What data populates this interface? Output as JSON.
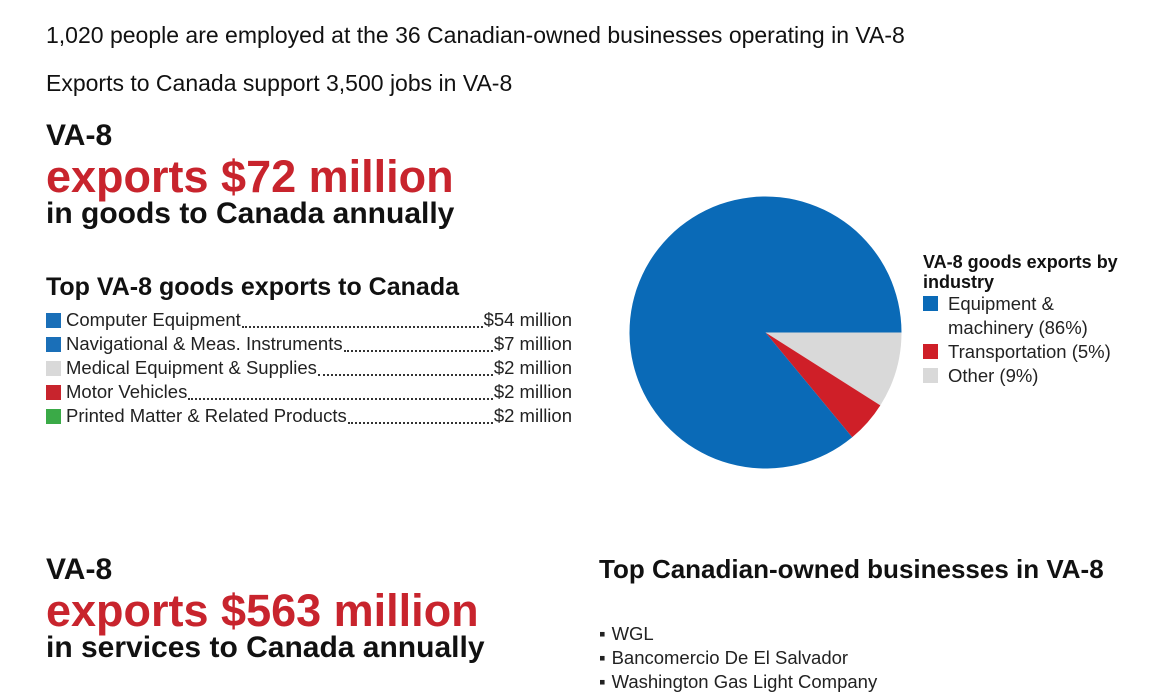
{
  "intro": {
    "line1": "1,020 people are employed at the 36 Canadian-owned businesses operating in VA-8",
    "line2": "Exports to Canada support 3,500 jobs in VA-8"
  },
  "goods": {
    "region": "VA-8",
    "amount": "exports $72 million",
    "subtitle": "in goods to Canada annually",
    "top_title": "Top VA-8 goods exports to Canada",
    "items": [
      {
        "label": "Computer Equipment",
        "value": "$54 million",
        "color": "#1a6fb8"
      },
      {
        "label": "Navigational & Meas. Instruments",
        "value": "$7 million",
        "color": "#1a6fb8"
      },
      {
        "label": "Medical Equipment & Supplies",
        "value": "$2 million",
        "color": "#d9d9d9"
      },
      {
        "label": "Motor Vehicles",
        "value": "$2 million",
        "color": "#c8242d"
      },
      {
        "label": "Printed Matter & Related Products",
        "value": "$2 million",
        "color": "#3aaa47"
      }
    ]
  },
  "chart_data": {
    "type": "pie",
    "title": "VA-8 goods exports by industry",
    "slices": [
      {
        "label": "Equipment & machinery (86%)",
        "value": 86,
        "color": "#0a6ab7"
      },
      {
        "label": "Transportation (5%)",
        "value": 5,
        "color": "#cf1f28"
      },
      {
        "label": "Other (9%)",
        "value": 9,
        "color": "#d9d9d9"
      }
    ],
    "legend_position": "right"
  },
  "services": {
    "region": "VA-8",
    "amount": "exports $563 million",
    "subtitle": "in services to Canada annually"
  },
  "businesses": {
    "title": "Top Canadian-owned businesses in VA-8",
    "bullet": "▪",
    "items": [
      "WGL",
      "Bancomercio De El Salvador",
      "Washington Gas Light Company"
    ]
  }
}
